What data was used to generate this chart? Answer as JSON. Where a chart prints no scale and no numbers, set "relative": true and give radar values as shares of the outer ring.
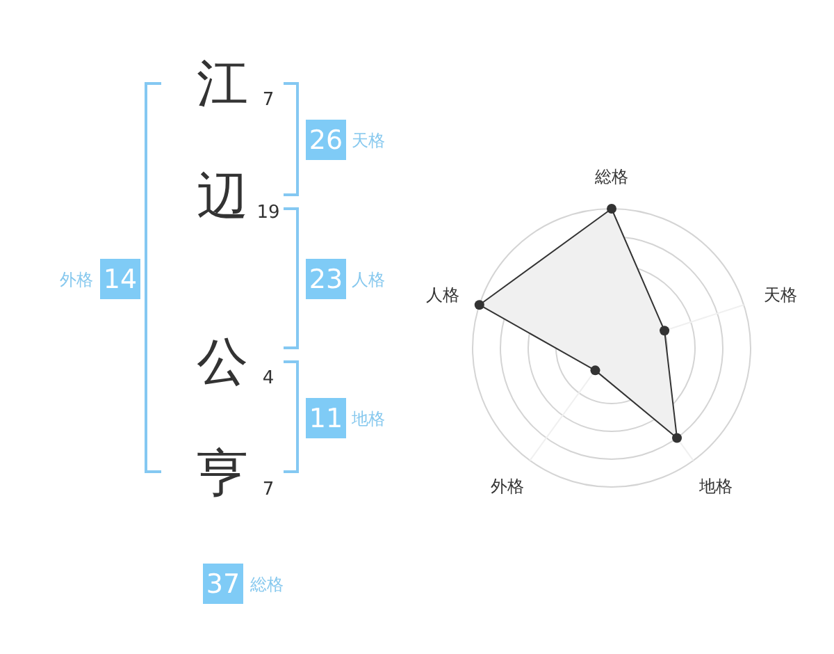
{
  "chart_data": [
    {
      "type": "other",
      "categories": [
        "江",
        "辺",
        "公",
        "亨"
      ],
      "values": [
        7,
        19,
        4,
        7
      ],
      "data_labels": true,
      "annotations": [
        "26",
        "天格",
        "23",
        "人格",
        "11",
        "地格",
        "外格",
        "14",
        "37",
        "総格"
      ]
    },
    {
      "type": "radar",
      "categories": [
        "総格",
        "天格",
        "地格",
        "外格",
        "人格"
      ],
      "relative": true,
      "series": [
        {
          "color": "#333333",
          "values": [
            1,
            0.4,
            0.8,
            0.2,
            1
          ]
        }
      ],
      "marker": "circle",
      "grid": true
    }
  ]
}
